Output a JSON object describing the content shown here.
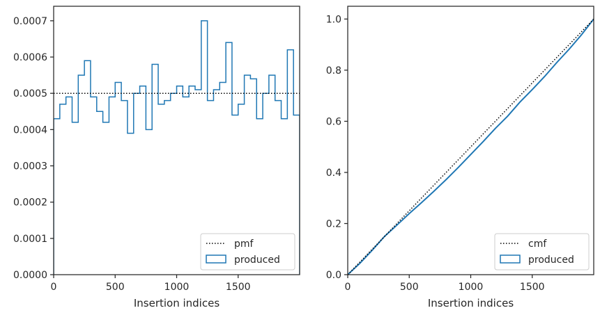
{
  "chart_data": [
    {
      "type": "step",
      "panel": "left",
      "xlabel": "Insertion indices",
      "ylabel": "",
      "xlim": [
        0,
        2000
      ],
      "ylim": [
        0,
        0.00074
      ],
      "x_ticks": [
        0,
        500,
        1000,
        1500
      ],
      "x_tick_labels": [
        "0",
        "500",
        "1000",
        "1500"
      ],
      "y_ticks": [
        0,
        0.0001,
        0.0002,
        0.0003,
        0.0004,
        0.0005,
        0.0006,
        0.0007
      ],
      "y_tick_labels": [
        "0.0000",
        "0.0001",
        "0.0002",
        "0.0003",
        "0.0004",
        "0.0005",
        "0.0006",
        "0.0007"
      ],
      "bin_edges": [
        0,
        50,
        100,
        150,
        200,
        250,
        300,
        350,
        400,
        450,
        500,
        550,
        600,
        650,
        700,
        750,
        800,
        850,
        900,
        950,
        1000,
        1050,
        1100,
        1150,
        1200,
        1250,
        1300,
        1350,
        1400,
        1450,
        1500,
        1550,
        1600,
        1650,
        1700,
        1750,
        1800,
        1850,
        1900,
        1950,
        2000
      ],
      "series": [
        {
          "name": "produced",
          "kind": "histogram-step",
          "color": "#1f77b4",
          "values": [
            0.00043,
            0.00047,
            0.00049,
            0.00042,
            0.00055,
            0.00059,
            0.00049,
            0.00045,
            0.00042,
            0.00049,
            0.00053,
            0.00048,
            0.00039,
            0.0005,
            0.00052,
            0.0004,
            0.00058,
            0.00047,
            0.00048,
            0.0005,
            0.00052,
            0.00049,
            0.00052,
            0.00051,
            0.0007,
            0.00048,
            0.00051,
            0.00053,
            0.00064,
            0.00044,
            0.00047,
            0.00055,
            0.00054,
            0.00043,
            0.0005,
            0.00055,
            0.00048,
            0.00043,
            0.00062,
            0.00044
          ]
        },
        {
          "name": "pmf",
          "kind": "reference-line",
          "style": "dotted",
          "color": "#000000",
          "value": 0.0005
        }
      ],
      "legend": {
        "position": "lower right",
        "entries": [
          "pmf",
          "produced"
        ]
      }
    },
    {
      "type": "line",
      "panel": "right",
      "xlabel": "Insertion indices",
      "ylabel": "",
      "xlim": [
        0,
        2000
      ],
      "ylim": [
        0,
        1.05
      ],
      "x_ticks": [
        0,
        500,
        1000,
        1500
      ],
      "x_tick_labels": [
        "0",
        "500",
        "1000",
        "1500"
      ],
      "y_ticks": [
        0,
        0.2,
        0.4,
        0.6,
        0.8,
        1.0
      ],
      "y_tick_labels": [
        "0.0",
        "0.2",
        "0.4",
        "0.6",
        "0.8",
        "1.0"
      ],
      "series": [
        {
          "name": "produced",
          "color": "#1f77b4",
          "x": [
            0,
            100,
            200,
            300,
            400,
            500,
            600,
            700,
            800,
            900,
            1000,
            1100,
            1200,
            1300,
            1400,
            1500,
            1600,
            1700,
            1800,
            1900,
            2000
          ],
          "y": [
            0,
            0.045,
            0.096,
            0.15,
            0.194,
            0.239,
            0.282,
            0.326,
            0.372,
            0.42,
            0.47,
            0.52,
            0.572,
            0.62,
            0.675,
            0.724,
            0.775,
            0.83,
            0.882,
            0.938,
            1.0
          ]
        },
        {
          "name": "cmf",
          "style": "dotted",
          "color": "#000000",
          "x": [
            0,
            2000
          ],
          "y": [
            0,
            1.0
          ]
        }
      ],
      "legend": {
        "position": "lower right",
        "entries": [
          "cmf",
          "produced"
        ]
      }
    }
  ]
}
